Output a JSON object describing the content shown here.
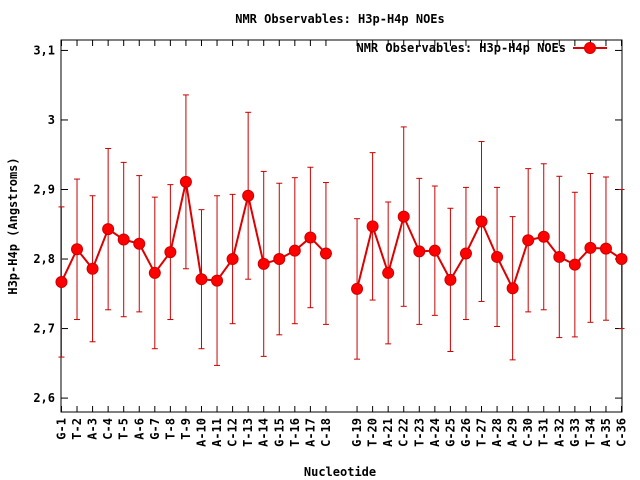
{
  "chart_data": {
    "type": "line",
    "title": "NMR Observables: H3p-H4p NOEs",
    "xlabel": "Nucleotide",
    "ylabel": "H3p-H4p (Angstroms)",
    "ylim": [
      2.58,
      3.115
    ],
    "y_ticks": [
      2.6,
      2.7,
      2.8,
      2.9,
      3,
      3.1
    ],
    "y_tick_labels": [
      "2,6",
      "2,7",
      "2,8",
      "2,9",
      "3",
      "3,1"
    ],
    "grid": false,
    "legend_position": "top-right",
    "series": [
      {
        "name": "NMR Observables: H3p-H4p NOEs",
        "color": "#ff0000",
        "line_color": "#dd0000",
        "points": [
          {
            "label": "G-1",
            "x": 1,
            "y": 2.767,
            "err": 0.108
          },
          {
            "label": "T-2",
            "x": 2,
            "y": 2.814,
            "err": 0.101
          },
          {
            "label": "A-3",
            "x": 3,
            "y": 2.786,
            "err": 0.105
          },
          {
            "label": "C-4",
            "x": 4,
            "y": 2.843,
            "err": 0.116
          },
          {
            "label": "T-5",
            "x": 5,
            "y": 2.828,
            "err": 0.111
          },
          {
            "label": "A-6",
            "x": 6,
            "y": 2.822,
            "err": 0.098
          },
          {
            "label": "G-7",
            "x": 7,
            "y": 2.78,
            "err": 0.109
          },
          {
            "label": "T-8",
            "x": 8,
            "y": 2.81,
            "err": 0.097
          },
          {
            "label": "T-9",
            "x": 9,
            "y": 2.911,
            "err": 0.125
          },
          {
            "label": "A-10",
            "x": 10,
            "y": 2.771,
            "err": 0.1
          },
          {
            "label": "A-11",
            "x": 11,
            "y": 2.769,
            "err": 0.122
          },
          {
            "label": "C-12",
            "x": 12,
            "y": 2.8,
            "err": 0.093
          },
          {
            "label": "T-13",
            "x": 13,
            "y": 2.891,
            "err": 0.12
          },
          {
            "label": "A-14",
            "x": 14,
            "y": 2.793,
            "err": 0.133
          },
          {
            "label": "G-15",
            "x": 15,
            "y": 2.8,
            "err": 0.109
          },
          {
            "label": "T-16",
            "x": 16,
            "y": 2.812,
            "err": 0.105
          },
          {
            "label": "A-17",
            "x": 17,
            "y": 2.831,
            "err": 0.101
          },
          {
            "label": "C-18",
            "x": 18,
            "y": 2.808,
            "err": 0.102
          },
          {
            "label": "G-19",
            "x": 20,
            "y": 2.757,
            "err": 0.101
          },
          {
            "label": "T-20",
            "x": 21,
            "y": 2.847,
            "err": 0.106
          },
          {
            "label": "A-21",
            "x": 22,
            "y": 2.78,
            "err": 0.102
          },
          {
            "label": "C-22",
            "x": 23,
            "y": 2.861,
            "err": 0.129
          },
          {
            "label": "T-23",
            "x": 24,
            "y": 2.811,
            "err": 0.105
          },
          {
            "label": "A-24",
            "x": 25,
            "y": 2.812,
            "err": 0.093
          },
          {
            "label": "G-25",
            "x": 26,
            "y": 2.77,
            "err": 0.103
          },
          {
            "label": "G-26",
            "x": 27,
            "y": 2.808,
            "err": 0.095
          },
          {
            "label": "T-27",
            "x": 28,
            "y": 2.854,
            "err": 0.115
          },
          {
            "label": "A-28",
            "x": 29,
            "y": 2.803,
            "err": 0.1
          },
          {
            "label": "A-29",
            "x": 30,
            "y": 2.758,
            "err": 0.103
          },
          {
            "label": "C-30",
            "x": 31,
            "y": 2.827,
            "err": 0.103
          },
          {
            "label": "T-31",
            "x": 32,
            "y": 2.832,
            "err": 0.105
          },
          {
            "label": "A-32",
            "x": 33,
            "y": 2.803,
            "err": 0.116
          },
          {
            "label": "G-33",
            "x": 34,
            "y": 2.792,
            "err": 0.104
          },
          {
            "label": "T-34",
            "x": 35,
            "y": 2.816,
            "err": 0.107
          },
          {
            "label": "A-35",
            "x": 36,
            "y": 2.815,
            "err": 0.103
          },
          {
            "label": "C-36",
            "x": 37,
            "y": 2.8,
            "err": 0.1
          }
        ]
      }
    ]
  }
}
